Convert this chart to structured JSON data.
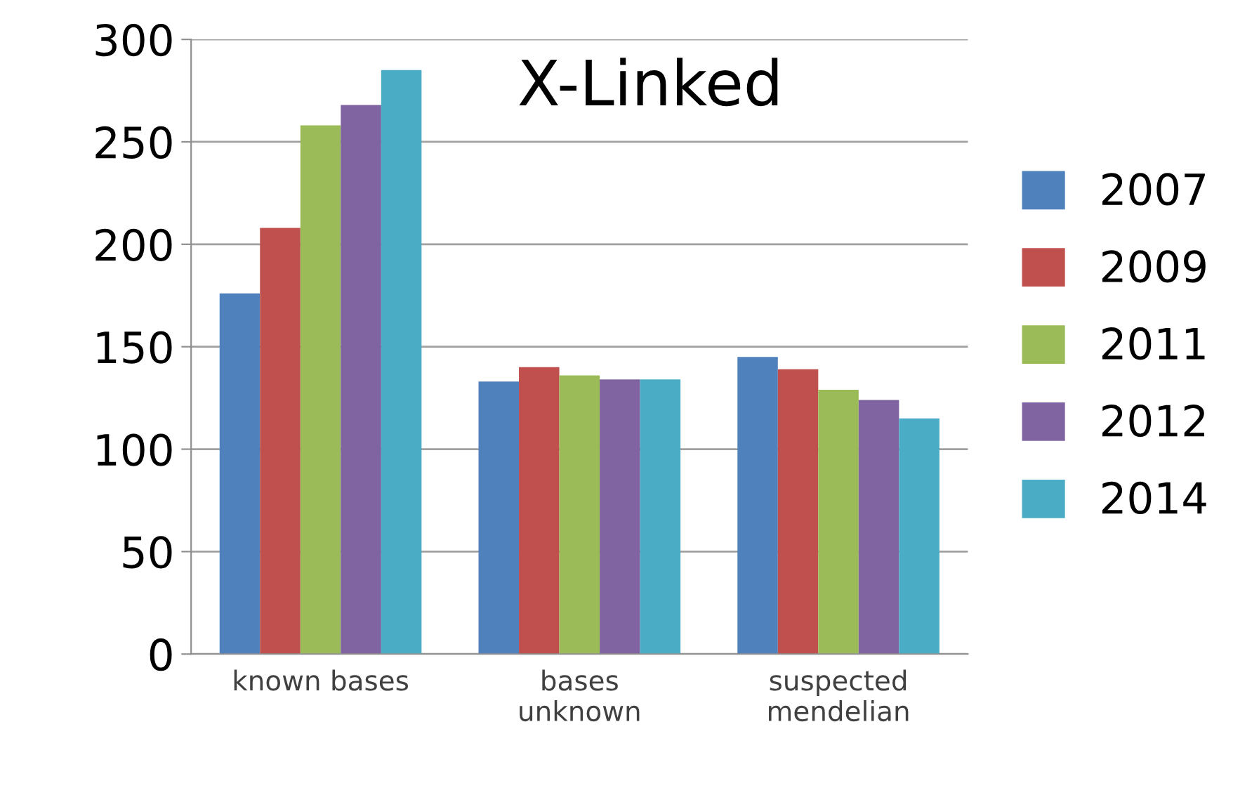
{
  "chart_data": {
    "type": "bar",
    "title": "X-Linked",
    "categories": [
      "known bases",
      "bases\nunknown",
      "suspected\nmendelian"
    ],
    "series": [
      {
        "name": "2007",
        "color": "#4f81bd",
        "values": [
          176,
          133,
          145
        ]
      },
      {
        "name": "2009",
        "color": "#c0504d",
        "values": [
          208,
          140,
          139
        ]
      },
      {
        "name": "2011",
        "color": "#9bbb59",
        "values": [
          258,
          136,
          129
        ]
      },
      {
        "name": "2012",
        "color": "#8064a2",
        "values": [
          268,
          134,
          124
        ]
      },
      {
        "name": "2014",
        "color": "#4bacc6",
        "values": [
          285,
          134,
          115
        ]
      }
    ],
    "ylim": [
      0,
      300
    ],
    "yticks": [
      0,
      50,
      100,
      150,
      200,
      250,
      300
    ],
    "grid": "y",
    "legend": "right"
  }
}
